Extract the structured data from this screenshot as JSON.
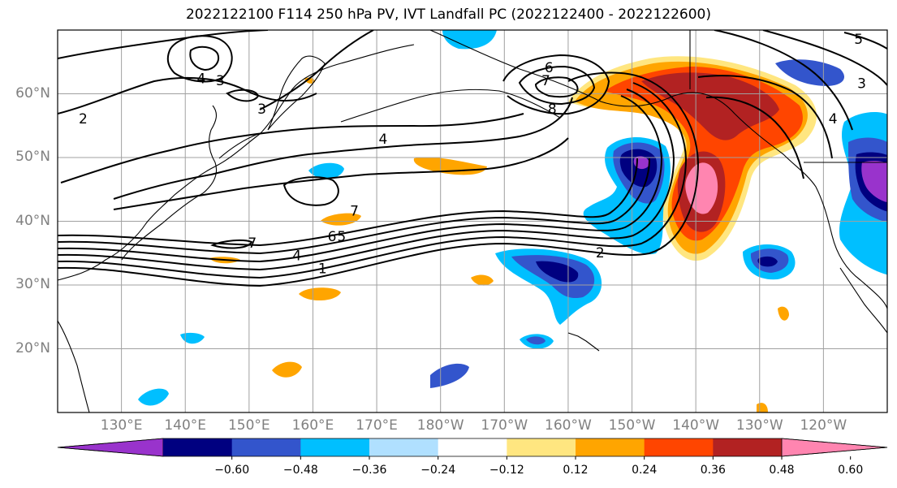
{
  "title": "2022122100 F114 250 hPa PV, IVT Landfall PC (2022122400 - 2022122600)",
  "map": {
    "projection": "equirectangular",
    "lon_range": [
      120,
      250
    ],
    "lat_range": [
      10,
      70
    ],
    "lat_ticks": [
      {
        "lat": 60,
        "label": "60°N"
      },
      {
        "lat": 50,
        "label": "50°N"
      },
      {
        "lat": 40,
        "label": "40°N"
      },
      {
        "lat": 30,
        "label": "30°N"
      },
      {
        "lat": 20,
        "label": "20°N"
      }
    ],
    "lon_ticks": [
      {
        "lon": 130,
        "label": "130°E"
      },
      {
        "lon": 140,
        "label": "140°E"
      },
      {
        "lon": 150,
        "label": "150°E"
      },
      {
        "lon": 160,
        "label": "160°E"
      },
      {
        "lon": 170,
        "label": "170°E"
      },
      {
        "lon": 180,
        "label": "180°W"
      },
      {
        "lon": 190,
        "label": "170°W"
      },
      {
        "lon": 200,
        "label": "160°W"
      },
      {
        "lon": 210,
        "label": "150°W"
      },
      {
        "lon": 220,
        "label": "140°W"
      },
      {
        "lon": 230,
        "label": "130°W"
      },
      {
        "lon": 240,
        "label": "120°W"
      }
    ],
    "contour_labels": [
      {
        "text": "2",
        "lon": 124,
        "lat": 56
      },
      {
        "text": "3",
        "lon": 145.5,
        "lat": 62
      },
      {
        "text": "4",
        "lon": 142.5,
        "lat": 62.3
      },
      {
        "text": "3",
        "lon": 152,
        "lat": 57.5
      },
      {
        "text": "4",
        "lon": 171,
        "lat": 52.8
      },
      {
        "text": "7",
        "lon": 166.5,
        "lat": 41.5
      },
      {
        "text": "7",
        "lon": 150.5,
        "lat": 36.5
      },
      {
        "text": "5",
        "lon": 164.5,
        "lat": 37.5
      },
      {
        "text": "6",
        "lon": 163,
        "lat": 37.5
      },
      {
        "text": "4",
        "lon": 157.5,
        "lat": 34.5
      },
      {
        "text": "1",
        "lon": 161.5,
        "lat": 32.5
      },
      {
        "text": "7",
        "lon": 196.5,
        "lat": 62
      },
      {
        "text": "6",
        "lon": 197,
        "lat": 64
      },
      {
        "text": "8",
        "lon": 197.5,
        "lat": 57.5
      },
      {
        "text": "2",
        "lon": 205,
        "lat": 35
      },
      {
        "text": "5",
        "lon": 245.5,
        "lat": 68.5
      },
      {
        "text": "3",
        "lon": 246,
        "lat": 61.5
      },
      {
        "text": "4",
        "lon": 241.5,
        "lat": 56
      }
    ],
    "colors": {
      "ocean": "#ffffff",
      "grid": "#a0a0a0",
      "coast": "#000000",
      "contour": "#000000"
    }
  },
  "colorbar": {
    "colors": [
      "#9933cc",
      "#000080",
      "#3355cc",
      "#00bfff",
      "#b0e0ff",
      "#ffffff",
      "#ffe680",
      "#ffa500",
      "#ff4500",
      "#b22222",
      "#ff85b0"
    ],
    "ticks": [
      "−0.60",
      "−0.48",
      "−0.36",
      "−0.24",
      "−0.12",
      "0.12",
      "0.24",
      "0.36",
      "0.48",
      "0.60"
    ],
    "extend": "both"
  }
}
